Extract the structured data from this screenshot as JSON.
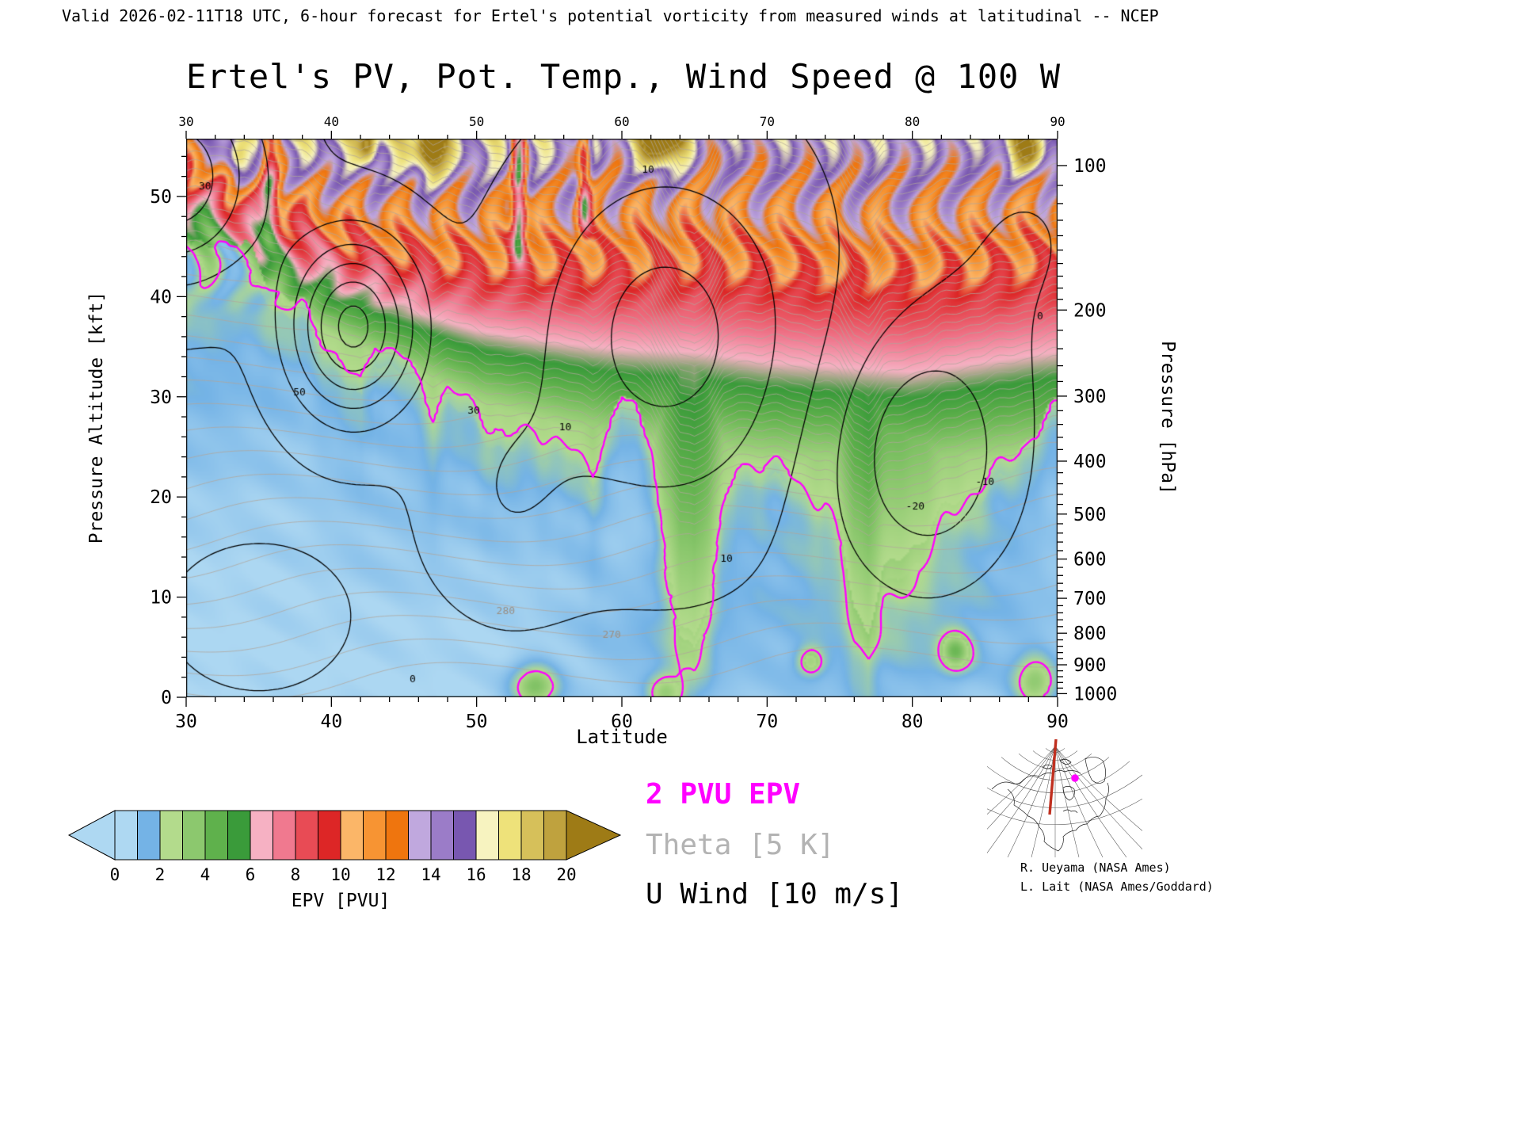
{
  "header": {
    "validity_line": "Valid 2026-02-11T18 UTC, 6-hour forecast for Ertel's potential vorticity from measured winds at latitudinal -- NCEP"
  },
  "title": "Ertel's PV, Pot. Temp., Wind Speed @ 100 W",
  "axes": {
    "x": {
      "label": "Latitude",
      "min": 30,
      "max": 90,
      "major_ticks": [
        30,
        40,
        50,
        60,
        70,
        80,
        90
      ],
      "minor_step": 2
    },
    "y_left": {
      "label": "Pressure Altitude [kft]",
      "min": 0,
      "max": 55.77,
      "major_ticks": [
        0,
        10,
        20,
        30,
        40,
        50
      ],
      "minor_step": 2
    },
    "y_right": {
      "label": "Pressure [hPa]",
      "major_ticks": [
        100,
        200,
        300,
        400,
        500,
        600,
        700,
        800,
        900,
        1000
      ],
      "minor_ticks": [
        110,
        120,
        130,
        140,
        150,
        160,
        170,
        180,
        190,
        220,
        240,
        260,
        280,
        320,
        340,
        360,
        380,
        420,
        440,
        460,
        480,
        520,
        540,
        560,
        580,
        620,
        640,
        660,
        680,
        720,
        740,
        760,
        780,
        820,
        840,
        860,
        880,
        920,
        940,
        960,
        980
      ],
      "pressure_to_kft": [
        [
          1000,
          0.364
        ],
        [
          900,
          3.243
        ],
        [
          800,
          6.394
        ],
        [
          700,
          9.882
        ],
        [
          600,
          13.801
        ],
        [
          500,
          18.289
        ],
        [
          400,
          23.574
        ],
        [
          300,
          30.065
        ],
        [
          200,
          38.662
        ],
        [
          150,
          44.647
        ],
        [
          100,
          53.083
        ]
      ]
    }
  },
  "colorbar": {
    "title": "EPV [PVU]",
    "tick_labels": [
      0,
      2,
      4,
      6,
      8,
      10,
      12,
      14,
      16,
      18,
      20
    ],
    "interval_pvu": 1,
    "segment_colors": [
      "#aed8f2",
      "#74b3e6",
      "#b3db8c",
      "#8cc86e",
      "#5fb14c",
      "#3a9b3a",
      "#f6b1c3",
      "#f0798f",
      "#e84b55",
      "#dd2626",
      "#fbb668",
      "#f79433",
      "#ef750e",
      "#c0a8de",
      "#9b7cc8",
      "#7857b0",
      "#f7f3c0",
      "#eee27a",
      "#d6c05a",
      "#bfa23e"
    ],
    "underflow_color": "#aed8f2",
    "overflow_color": "#9e7b16"
  },
  "legend": [
    {
      "label": "2 PVU EPV",
      "color": "#ff00ff"
    },
    {
      "label": "Theta [5 K]",
      "color": "#b3b3b3"
    },
    {
      "label": "U Wind [10 m/s]",
      "color": "#000000"
    }
  ],
  "inset": {
    "credit_line_1": "R. Ueyama (NASA Ames)",
    "credit_line_2": "L. Lait (NASA Ames/Goddard)",
    "meridian_color": "#c03020",
    "marker_color": "#ff00ff",
    "meridian_longitude": "100 W"
  },
  "chart_data": {
    "type": "heatmap",
    "title": "Ertel's PV, Pot. Temp., Wind Speed @ 100 W",
    "xlabel": "Latitude",
    "ylabel_left": "Pressure Altitude [kft]",
    "ylabel_right": "Pressure [hPa]",
    "xlim": [
      30,
      90
    ],
    "ylim_kft": [
      0,
      55.77
    ],
    "fill_field": "Ertel potential vorticity [PVU]",
    "fill_levels_pvu": [
      0,
      1,
      2,
      3,
      4,
      5,
      6,
      7,
      8,
      9,
      10,
      11,
      12,
      13,
      14,
      15,
      16,
      17,
      18,
      19,
      20
    ],
    "overlays": [
      {
        "field": "EPV",
        "level_pvu": 2,
        "color": "#ff00ff",
        "style": "solid"
      },
      {
        "field": "Theta",
        "interval_K": 5,
        "color": "#b8b0a8",
        "style": "solid"
      },
      {
        "field": "U wind",
        "interval_ms": 10,
        "color": "#000000",
        "style": "solid, dashed when negative"
      }
    ],
    "tropopause_2pvu_kft": [
      [
        30,
        44
      ],
      [
        32,
        46
      ],
      [
        34,
        45
      ],
      [
        36,
        41
      ],
      [
        38,
        39
      ],
      [
        40,
        35
      ],
      [
        42,
        31
      ],
      [
        43,
        36
      ],
      [
        45,
        34
      ],
      [
        47,
        29
      ],
      [
        48,
        31
      ],
      [
        50,
        29
      ],
      [
        52,
        26
      ],
      [
        54,
        27
      ],
      [
        56,
        25
      ],
      [
        58,
        23
      ],
      [
        60,
        30
      ],
      [
        61,
        29
      ],
      [
        62,
        26
      ],
      [
        63,
        14
      ],
      [
        64,
        7
      ],
      [
        65,
        6
      ],
      [
        66,
        11
      ],
      [
        67,
        19
      ],
      [
        68,
        23
      ],
      [
        70,
        24
      ],
      [
        72,
        22
      ],
      [
        74,
        20
      ],
      [
        75,
        17
      ],
      [
        76,
        9
      ],
      [
        77,
        7
      ],
      [
        78,
        12
      ],
      [
        80,
        15
      ],
      [
        82,
        18
      ],
      [
        84,
        21
      ],
      [
        86,
        23
      ],
      [
        88,
        26
      ],
      [
        90,
        29
      ]
    ],
    "smooth_tropopause_kft": [
      [
        30,
        45
      ],
      [
        40,
        36
      ],
      [
        50,
        29
      ],
      [
        60,
        25
      ],
      [
        70,
        23
      ],
      [
        80,
        22
      ],
      [
        90,
        24
      ]
    ],
    "low_pv_notches": [
      {
        "lat": 52.9,
        "w": 0.5,
        "z0": 42,
        "amp": 8
      },
      {
        "lat": 57.4,
        "w": 0.45,
        "z0": 44,
        "amp": 6
      },
      {
        "lat": 35.7,
        "w": 0.6,
        "z0": 44,
        "amp": 5
      }
    ],
    "boundary_pv_blobs": [
      {
        "lat": 54,
        "lw": 1.6,
        "z": 1,
        "zw": 2.2,
        "amp": 3.2
      },
      {
        "lat": 63,
        "lw": 1.2,
        "z": 0.5,
        "zw": 1.8,
        "amp": 2.6
      },
      {
        "lat": 73,
        "lw": 0.9,
        "z": 3.5,
        "zw": 1.4,
        "amp": 2.4
      },
      {
        "lat": 83,
        "lw": 1.1,
        "z": 4.5,
        "zw": 1.9,
        "amp": 3.4
      },
      {
        "lat": 88.5,
        "lw": 1.4,
        "z": 1.5,
        "zw": 2.6,
        "amp": 2.8
      }
    ],
    "high_pv_spots": [
      {
        "lat": 33.5,
        "lw": 0.8,
        "z": 54,
        "zw": 2.2,
        "amp": 6
      },
      {
        "lat": 42.5,
        "lw": 0.6,
        "z": 55.5,
        "zw": 2.0,
        "amp": 5
      },
      {
        "lat": 46.8,
        "lw": 0.9,
        "z": 55,
        "zw": 2.6,
        "amp": 9
      },
      {
        "lat": 62.8,
        "lw": 1.5,
        "z": 56,
        "zw": 3.2,
        "amp": 10
      },
      {
        "lat": 88,
        "lw": 1.6,
        "z": 55,
        "zw": 2.6,
        "amp": 6
      }
    ],
    "blue_shade_blobs": [
      {
        "lat": 78,
        "lw": 14,
        "z": 8,
        "zw": 10,
        "amp": 0.9
      },
      {
        "lat": 62,
        "lw": 5,
        "z": 6,
        "zw": 7,
        "amp": 0.6
      },
      {
        "lat": 45,
        "lw": 8,
        "z": 18,
        "zw": 10,
        "amp": 0.35
      },
      {
        "lat": 31,
        "lw": 6,
        "z": 33,
        "zw": 14,
        "amp": 0.7
      }
    ],
    "u_wind_base_ms": -2,
    "u_jets": [
      {
        "lat": 41.5,
        "lat_w": 4.2,
        "alt": 37,
        "alt_w": 8.5,
        "amp": 55
      },
      {
        "lat": 63,
        "lat_w": 9,
        "alt": 36,
        "alt_w": 17,
        "amp": 26
      },
      {
        "lat": 52,
        "lat_w": 5,
        "alt": 20,
        "alt_w": 10,
        "amp": 10
      },
      {
        "lat": 29,
        "lat_w": 6,
        "alt": 52,
        "alt_w": 10,
        "amp": 40
      },
      {
        "lat": 35,
        "lat_w": 6,
        "alt": 8,
        "alt_w": 7,
        "amp": 6
      },
      {
        "lat": 81,
        "lat_w": 6.5,
        "alt": 24,
        "alt_w": 13,
        "amp": -26
      },
      {
        "lat": 88,
        "lat_w": 8,
        "alt": 46,
        "alt_w": 14,
        "amp": -8
      }
    ],
    "u_levels_solid": [
      0,
      10,
      20,
      30,
      40,
      50
    ],
    "u_levels_dashed": [
      -10,
      -20
    ],
    "theta_model": {
      "base": 288,
      "lapse_per_kft": 2.05,
      "lat_coef": 0.12,
      "strat_coef": 2.6,
      "strat_pow": 1.12,
      "wave_amp": 3,
      "levels_min": 290,
      "levels_max": 660,
      "levels_step": 5
    },
    "contour_labels": [
      {
        "text": "30",
        "lat": 31.3,
        "z": 51,
        "color": "#000000"
      },
      {
        "text": "50",
        "lat": 37.8,
        "z": 30.4,
        "color": "#000000"
      },
      {
        "text": "30",
        "lat": 49.8,
        "z": 28.6,
        "color": "#000000"
      },
      {
        "text": "10",
        "lat": 56.1,
        "z": 26.9,
        "color": "#000000"
      },
      {
        "text": "10",
        "lat": 61.8,
        "z": 52.6,
        "color": "#000000"
      },
      {
        "text": "0",
        "lat": 45.6,
        "z": 1.8,
        "color": "#000000"
      },
      {
        "text": "10",
        "lat": 67.2,
        "z": 13.8,
        "color": "#000000"
      },
      {
        "text": "-20",
        "lat": 80.2,
        "z": 19.0,
        "color": "#000000"
      },
      {
        "text": "-10",
        "lat": 85.0,
        "z": 21.5,
        "color": "#000000"
      },
      {
        "text": "0",
        "lat": 88.8,
        "z": 38.0,
        "color": "#000000"
      },
      {
        "text": "270",
        "lat": 59.3,
        "z": 6.2,
        "color": "#9a9086"
      },
      {
        "text": "280",
        "lat": 52.0,
        "z": 8.6,
        "color": "#9a9086"
      }
    ]
  }
}
